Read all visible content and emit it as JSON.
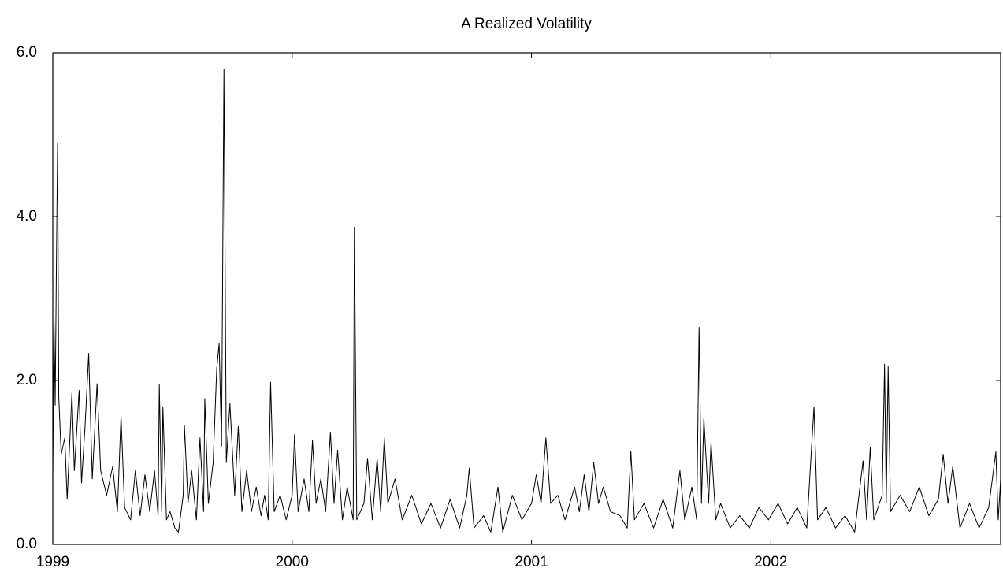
{
  "chart_data": {
    "type": "line",
    "title": "A Realized Volatility",
    "color": "#000000",
    "x": [
      1999.0,
      1999.005,
      1999.01,
      1999.015,
      1999.02,
      1999.025,
      1999.035,
      1999.05,
      1999.06,
      1999.08,
      1999.09,
      1999.11,
      1999.12,
      1999.135,
      1999.15,
      1999.165,
      1999.185,
      1999.2,
      1999.225,
      1999.25,
      1999.27,
      1999.285,
      1999.3,
      1999.325,
      1999.345,
      1999.365,
      1999.385,
      1999.405,
      1999.425,
      1999.44,
      1999.445,
      1999.455,
      1999.46,
      1999.475,
      1999.49,
      1999.51,
      1999.525,
      1999.545,
      1999.55,
      1999.565,
      1999.58,
      1999.6,
      1999.615,
      1999.63,
      1999.635,
      1999.65,
      1999.67,
      1999.685,
      1999.695,
      1999.705,
      1999.715,
      1999.725,
      1999.74,
      1999.76,
      1999.775,
      1999.79,
      1999.81,
      1999.83,
      1999.85,
      1999.87,
      1999.885,
      1999.9,
      1999.91,
      1999.925,
      1999.95,
      1999.975,
      2000.0,
      2000.01,
      2000.025,
      2000.05,
      2000.07,
      2000.085,
      2000.1,
      2000.12,
      2000.14,
      2000.16,
      2000.175,
      2000.19,
      2000.21,
      2000.23,
      2000.255,
      2000.26,
      2000.27,
      2000.3,
      2000.315,
      2000.335,
      2000.355,
      2000.37,
      2000.385,
      2000.4,
      2000.43,
      2000.46,
      2000.5,
      2000.54,
      2000.58,
      2000.62,
      2000.66,
      2000.7,
      2000.73,
      2000.74,
      2000.76,
      2000.8,
      2000.83,
      2000.86,
      2000.88,
      2000.92,
      2000.96,
      2001.0,
      2001.02,
      2001.04,
      2001.06,
      2001.08,
      2001.11,
      2001.14,
      2001.18,
      2001.2,
      2001.22,
      2001.24,
      2001.26,
      2001.28,
      2001.3,
      2001.33,
      2001.37,
      2001.4,
      2001.415,
      2001.43,
      2001.47,
      2001.51,
      2001.55,
      2001.59,
      2001.62,
      2001.64,
      2001.67,
      2001.69,
      2001.7,
      2001.71,
      2001.72,
      2001.74,
      2001.75,
      2001.77,
      2001.79,
      2001.83,
      2001.87,
      2001.91,
      2001.95,
      2001.99,
      2002.03,
      2002.07,
      2002.11,
      2002.15,
      2002.18,
      2002.195,
      2002.23,
      2002.27,
      2002.31,
      2002.35,
      2002.385,
      2002.4,
      2002.415,
      2002.43,
      2002.465,
      2002.475,
      2002.482,
      2002.49,
      2002.5,
      2002.54,
      2002.58,
      2002.62,
      2002.66,
      2002.7,
      2002.72,
      2002.74,
      2002.76,
      2002.79,
      2002.83,
      2002.87,
      2002.91,
      2002.94,
      2002.95,
      2002.96
    ],
    "values": [
      0.8,
      2.75,
      1.7,
      3.4,
      4.9,
      1.8,
      1.1,
      1.3,
      0.55,
      1.85,
      0.9,
      1.88,
      0.75,
      1.45,
      2.33,
      0.8,
      1.96,
      0.9,
      0.6,
      0.95,
      0.4,
      1.57,
      0.45,
      0.3,
      0.9,
      0.35,
      0.85,
      0.4,
      0.9,
      0.35,
      1.95,
      0.4,
      1.68,
      0.3,
      0.4,
      0.2,
      0.15,
      0.6,
      1.45,
      0.5,
      0.9,
      0.3,
      1.3,
      0.4,
      1.78,
      0.5,
      1.0,
      2.15,
      2.45,
      1.2,
      5.8,
      1.0,
      1.72,
      0.6,
      1.44,
      0.4,
      0.9,
      0.4,
      0.7,
      0.35,
      0.6,
      0.3,
      1.98,
      0.4,
      0.6,
      0.3,
      0.6,
      1.34,
      0.4,
      0.8,
      0.4,
      1.27,
      0.5,
      0.8,
      0.4,
      1.37,
      0.5,
      1.15,
      0.3,
      0.7,
      0.3,
      3.87,
      0.3,
      0.5,
      1.05,
      0.3,
      1.05,
      0.4,
      1.3,
      0.5,
      0.8,
      0.3,
      0.6,
      0.25,
      0.5,
      0.2,
      0.55,
      0.2,
      0.6,
      0.93,
      0.2,
      0.35,
      0.15,
      0.7,
      0.15,
      0.6,
      0.3,
      0.5,
      0.85,
      0.5,
      1.3,
      0.5,
      0.6,
      0.3,
      0.7,
      0.4,
      0.85,
      0.4,
      1.0,
      0.5,
      0.7,
      0.4,
      0.35,
      0.2,
      1.14,
      0.3,
      0.5,
      0.2,
      0.55,
      0.2,
      0.9,
      0.3,
      0.7,
      0.3,
      2.65,
      0.5,
      1.54,
      0.5,
      1.25,
      0.3,
      0.5,
      0.2,
      0.35,
      0.2,
      0.45,
      0.3,
      0.5,
      0.25,
      0.45,
      0.2,
      1.68,
      0.3,
      0.45,
      0.2,
      0.35,
      0.15,
      1.02,
      0.3,
      1.18,
      0.3,
      0.6,
      2.2,
      0.5,
      2.17,
      0.4,
      0.6,
      0.4,
      0.7,
      0.35,
      0.55,
      1.1,
      0.5,
      0.95,
      0.2,
      0.5,
      0.2,
      0.45,
      1.13,
      0.3,
      0.8
    ],
    "xlim": [
      1999,
      2002.96
    ],
    "xticks": [
      1999,
      2000,
      2001,
      2002
    ],
    "ylim": [
      0,
      6
    ],
    "yticks": [
      {
        "value": 0,
        "label": "0.0"
      },
      {
        "value": 2,
        "label": "2.0"
      },
      {
        "value": 4,
        "label": "4.0"
      },
      {
        "value": 6,
        "label": "6.0"
      }
    ]
  }
}
